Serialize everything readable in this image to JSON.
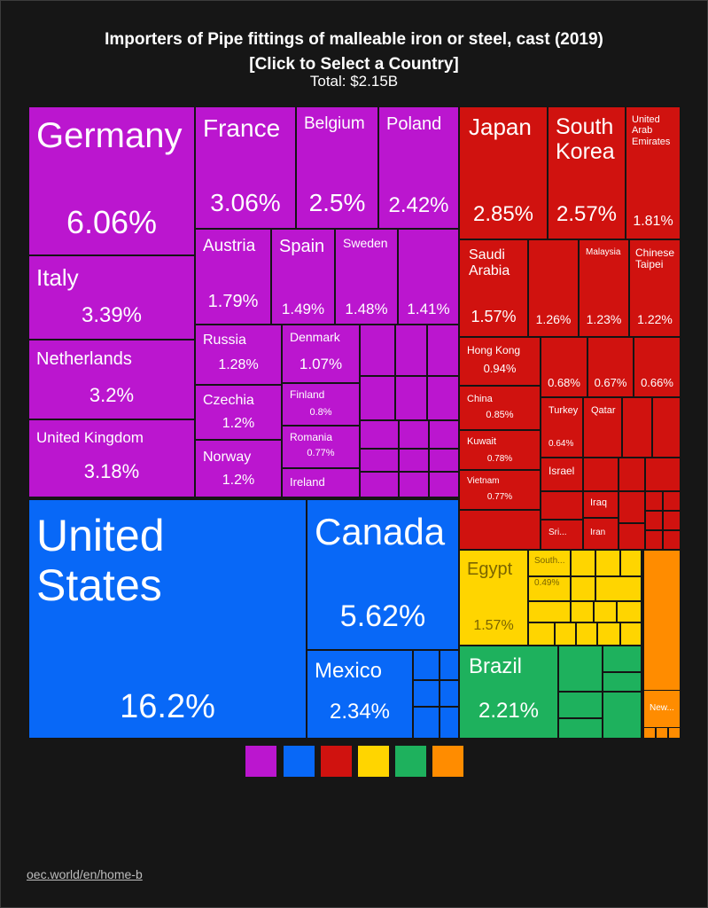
{
  "header": {
    "title_line1": "Importers of Pipe fittings of malleable iron or steel, cast (2019)",
    "title_line2": "[Click to Select a Country]",
    "total": "Total: $2.15B"
  },
  "footer": {
    "link": "oec.world/en/home-b"
  },
  "colors": {
    "europe": "#bb16cf",
    "north_america": "#0868f7",
    "asia": "#d0120f",
    "africa": "#ffd500",
    "south_america": "#1eb15d",
    "oceania": "#ff8c00"
  },
  "legend": [
    {
      "region": "europe",
      "color": "#bb16cf"
    },
    {
      "region": "north_america",
      "color": "#0868f7"
    },
    {
      "region": "asia",
      "color": "#d0120f"
    },
    {
      "region": "africa",
      "color": "#ffd500"
    },
    {
      "region": "south_america",
      "color": "#1eb15d"
    },
    {
      "region": "oceania",
      "color": "#ff8c00"
    }
  ],
  "chart_data": {
    "type": "treemap",
    "title": "Importers of Pipe fittings of malleable iron or steel, cast (2019)",
    "subtitle": "[Click to Select a Country]",
    "total": "Total: $2.15B",
    "unit": "% of total imports",
    "groups": [
      {
        "region": "europe",
        "color": "#bb16cf",
        "items": [
          {
            "name": "Germany",
            "share": 6.06,
            "label": "6.06%"
          },
          {
            "name": "Italy",
            "share": 3.39,
            "label": "3.39%"
          },
          {
            "name": "Netherlands",
            "share": 3.2,
            "label": "3.2%"
          },
          {
            "name": "United Kingdom",
            "share": 3.18,
            "label": "3.18%"
          },
          {
            "name": "France",
            "share": 3.06,
            "label": "3.06%"
          },
          {
            "name": "Belgium",
            "share": 2.5,
            "label": "2.5%"
          },
          {
            "name": "Poland",
            "share": 2.42,
            "label": "2.42%"
          },
          {
            "name": "Austria",
            "share": 1.79,
            "label": "1.79%"
          },
          {
            "name": "Spain",
            "share": 1.49,
            "label": "1.49%"
          },
          {
            "name": "Sweden",
            "share": 1.48,
            "label": "1.48%"
          },
          {
            "name": "",
            "share": 1.41,
            "label": "1.41%"
          },
          {
            "name": "Russia",
            "share": 1.28,
            "label": "1.28%"
          },
          {
            "name": "Czechia",
            "share": 1.2,
            "label": "1.2%"
          },
          {
            "name": "Norway",
            "share": 1.2,
            "label": "1.2%"
          },
          {
            "name": "Denmark",
            "share": 1.07,
            "label": "1.07%"
          },
          {
            "name": "Finland",
            "share": 0.8,
            "label": "0.8%"
          },
          {
            "name": "Romania",
            "share": 0.77,
            "label": "0.77%"
          },
          {
            "name": "Ireland",
            "share": null,
            "label": ""
          }
        ]
      },
      {
        "region": "north_america",
        "color": "#0868f7",
        "items": [
          {
            "name": "United States",
            "share": 16.2,
            "label": "16.2%"
          },
          {
            "name": "Canada",
            "share": 5.62,
            "label": "5.62%"
          },
          {
            "name": "Mexico",
            "share": 2.34,
            "label": "2.34%"
          }
        ]
      },
      {
        "region": "asia",
        "color": "#d0120f",
        "items": [
          {
            "name": "Japan",
            "share": 2.85,
            "label": "2.85%"
          },
          {
            "name": "South Korea",
            "share": 2.57,
            "label": "2.57%"
          },
          {
            "name": "United Arab Emirates",
            "share": 1.81,
            "label": "1.81%"
          },
          {
            "name": "Saudi Arabia",
            "share": 1.57,
            "label": "1.57%"
          },
          {
            "name": "",
            "share": 1.26,
            "label": "1.26%"
          },
          {
            "name": "Malaysia",
            "share": 1.23,
            "label": "1.23%"
          },
          {
            "name": "Chinese Taipei",
            "share": 1.22,
            "label": "1.22%"
          },
          {
            "name": "Hong Kong",
            "share": 0.94,
            "label": "0.94%"
          },
          {
            "name": "",
            "share": 0.68,
            "label": "0.68%"
          },
          {
            "name": "",
            "share": 0.67,
            "label": "0.67%"
          },
          {
            "name": "",
            "share": 0.66,
            "label": "0.66%"
          },
          {
            "name": "China",
            "share": 0.85,
            "label": "0.85%"
          },
          {
            "name": "Kuwait",
            "share": 0.78,
            "label": "0.78%"
          },
          {
            "name": "Vietnam",
            "share": 0.77,
            "label": "0.77%"
          },
          {
            "name": "Turkey",
            "share": 0.64,
            "label": "0.64%"
          },
          {
            "name": "Qatar",
            "share": null,
            "label": ""
          },
          {
            "name": "Israel",
            "share": null,
            "label": ""
          },
          {
            "name": "Iraq",
            "share": null,
            "label": ""
          },
          {
            "name": "Sri...",
            "share": null,
            "label": ""
          },
          {
            "name": "Iran",
            "share": null,
            "label": ""
          }
        ]
      },
      {
        "region": "africa",
        "color": "#ffd500",
        "items": [
          {
            "name": "Egypt",
            "share": 1.57,
            "label": "1.57%"
          },
          {
            "name": "South...",
            "share": 0.49,
            "label": "0.49%"
          }
        ]
      },
      {
        "region": "south_america",
        "color": "#1eb15d",
        "items": [
          {
            "name": "Brazil",
            "share": 2.21,
            "label": "2.21%"
          }
        ]
      },
      {
        "region": "oceania",
        "color": "#ff8c00",
        "items": [
          {
            "name": "New...",
            "share": null,
            "label": ""
          }
        ]
      }
    ]
  }
}
